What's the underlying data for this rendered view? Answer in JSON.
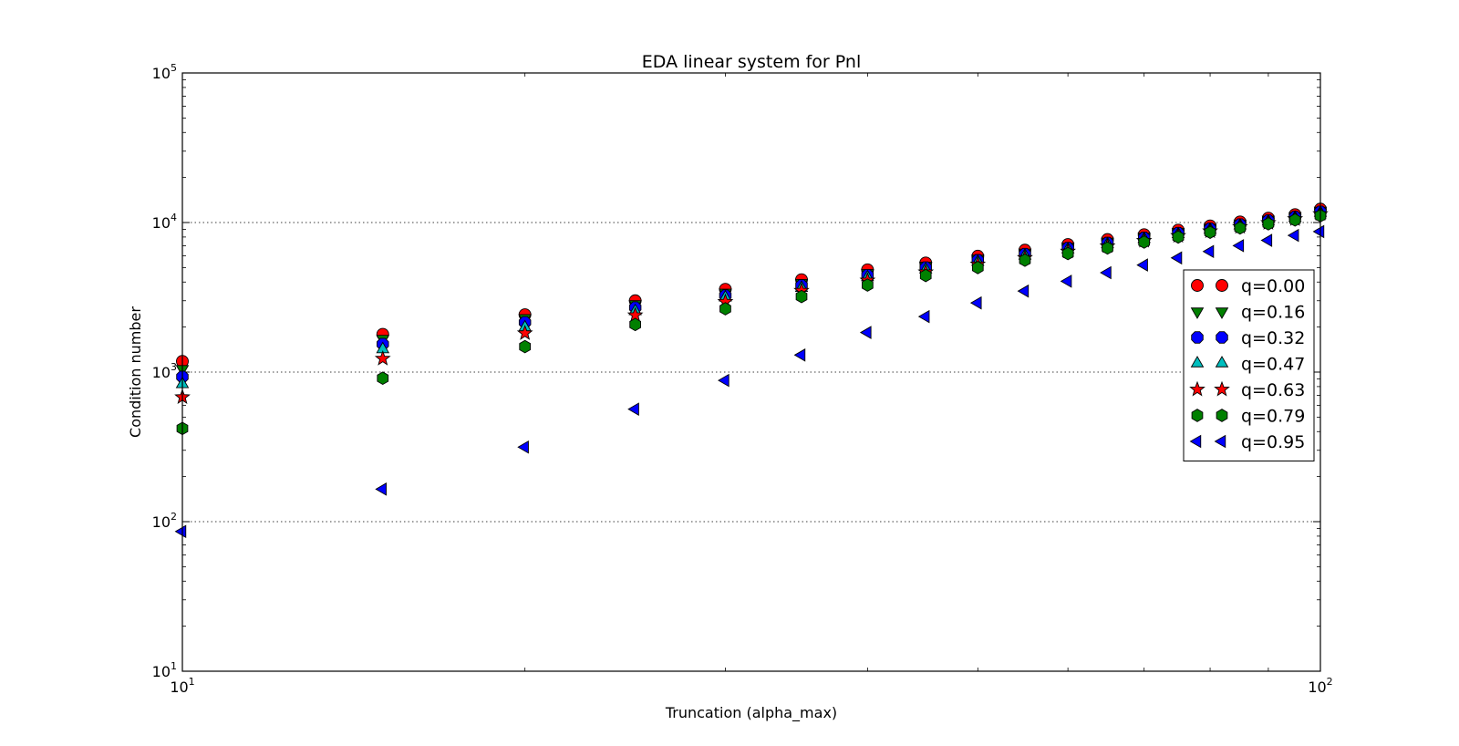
{
  "chart_data": {
    "type": "scatter",
    "title": "EDA linear system for Pnl",
    "xlabel": "Truncation (alpha_max)",
    "ylabel": "Condition number",
    "xscale": "log",
    "yscale": "log",
    "xlim": [
      10,
      100
    ],
    "ylim": [
      10,
      100000
    ],
    "grid": "y-major dotted",
    "legend_position": "center-right",
    "x_ticks": [
      {
        "value": 10,
        "base": "10",
        "exp": "1"
      },
      {
        "value": 100,
        "base": "10",
        "exp": "2"
      }
    ],
    "y_ticks": [
      {
        "value": 10,
        "base": "10",
        "exp": "1"
      },
      {
        "value": 100,
        "base": "10",
        "exp": "2"
      },
      {
        "value": 1000,
        "base": "10",
        "exp": "3"
      },
      {
        "value": 10000,
        "base": "10",
        "exp": "4"
      },
      {
        "value": 100000,
        "base": "10",
        "exp": "5"
      }
    ],
    "x": [
      10,
      15,
      20,
      25,
      30,
      35,
      40,
      45,
      50,
      55,
      60,
      65,
      70,
      75,
      80,
      85,
      90,
      95,
      100
    ],
    "series": [
      {
        "name": "q=0.00",
        "marker": "circle",
        "color": "#ff0000",
        "values": [
          1180,
          1790,
          2420,
          3000,
          3580,
          4150,
          4830,
          5370,
          5960,
          6540,
          7130,
          7700,
          8300,
          8900,
          9500,
          10100,
          10700,
          11300,
          12300
        ]
      },
      {
        "name": "q=0.16",
        "marker": "triangle-down",
        "color": "#008000",
        "values": [
          1050,
          1670,
          2300,
          2850,
          3400,
          3950,
          4600,
          5150,
          5750,
          6300,
          6900,
          7450,
          8050,
          8650,
          9250,
          9850,
          10450,
          11050,
          12000
        ]
      },
      {
        "name": "q=0.32",
        "marker": "octagon",
        "color": "#0000ff",
        "values": [
          930,
          1540,
          2150,
          2700,
          3250,
          3800,
          4450,
          5000,
          5600,
          6150,
          6750,
          7300,
          7900,
          8500,
          9100,
          9700,
          10300,
          10900,
          11800
        ]
      },
      {
        "name": "q=0.47",
        "marker": "triangle-up",
        "color": "#00bfbf",
        "values": [
          830,
          1420,
          1990,
          2550,
          3150,
          3650,
          4300,
          4850,
          5450,
          6000,
          6600,
          7150,
          7750,
          8350,
          8950,
          9550,
          10150,
          10750,
          11600
        ]
      },
      {
        "name": "q=0.63",
        "marker": "star",
        "color": "#ff0000",
        "values": [
          680,
          1230,
          1820,
          2400,
          2950,
          3500,
          4100,
          4650,
          5250,
          5800,
          6400,
          6950,
          7550,
          8150,
          8750,
          9350,
          9950,
          10550,
          11400
        ]
      },
      {
        "name": "q=0.79",
        "marker": "hexagon",
        "color": "#008000",
        "values": [
          420,
          910,
          1480,
          2080,
          2650,
          3200,
          3820,
          4420,
          5000,
          5600,
          6200,
          6750,
          7400,
          8000,
          8600,
          9200,
          9800,
          10400,
          11100
        ]
      },
      {
        "name": "q=0.95",
        "marker": "triangle-left",
        "color": "#0000ff",
        "values": [
          86,
          165,
          315,
          565,
          880,
          1300,
          1840,
          2350,
          2900,
          3480,
          4050,
          4620,
          5200,
          5800,
          6400,
          7000,
          7600,
          8200,
          8700
        ]
      }
    ]
  }
}
